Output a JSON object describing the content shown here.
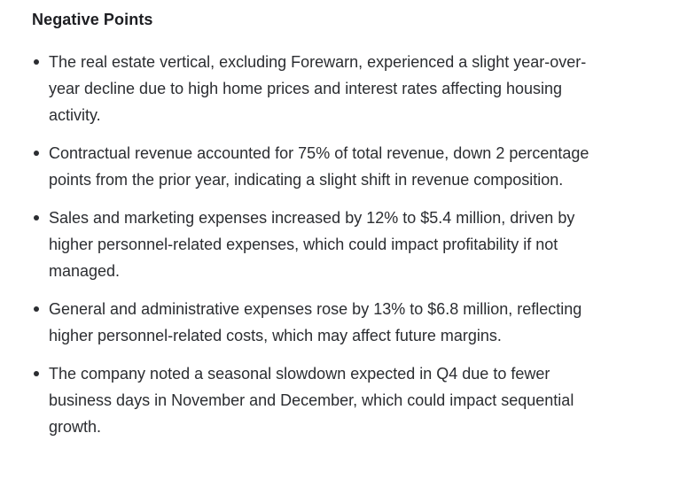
{
  "page": {
    "heading": "Negative Points",
    "bullets": [
      "The real estate vertical, excluding Forewarn, experienced a slight year-over-year decline due to high home prices and interest rates affecting housing activity.",
      "Contractual revenue accounted for 75% of total revenue, down 2 percentage points from the prior year, indicating a slight shift in revenue composition.",
      "Sales and marketing expenses increased by 12% to $5.4 million, driven by higher personnel-related expenses, which could impact profitability if not managed.",
      "General and administrative expenses rose by 13% to $6.8 million, reflecting higher personnel-related costs, which may affect future margins.",
      "The company noted a seasonal slowdown expected in Q4 due to fewer business days in November and December, which could impact sequential growth."
    ],
    "colors": {
      "background": "#ffffff",
      "heading_text": "#1d1e22",
      "body_text": "#2b2d31"
    }
  }
}
